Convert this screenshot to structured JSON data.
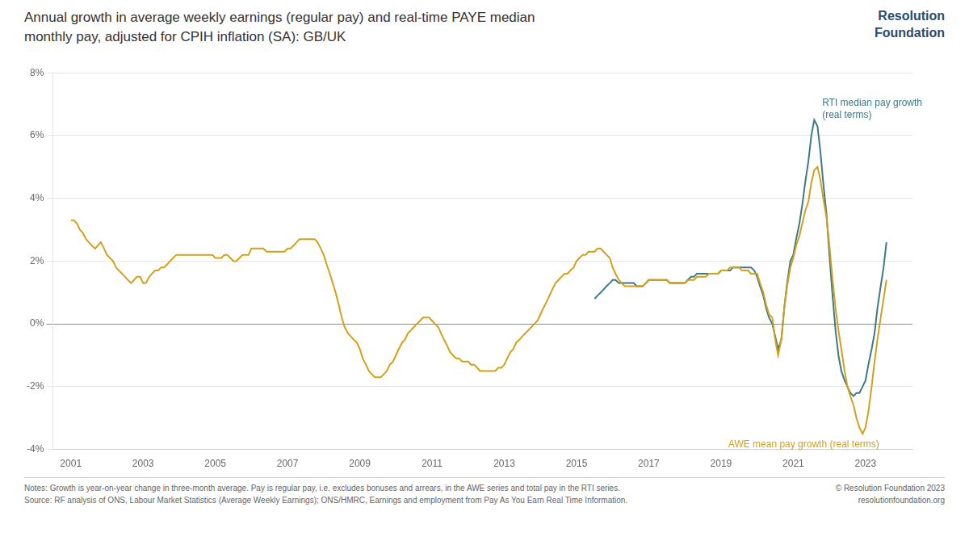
{
  "chart_data": {
    "type": "line",
    "title": "Annual growth in average weekly earnings (regular pay) and real-time PAYE median\nmonthly pay, adjusted for CPIH inflation (SA): GB/UK",
    "logo": "Resolution\nFoundation",
    "notes": [
      "Notes: Growth is year-on-year change in three-month average. Pay is regular pay, i.e. excludes bonuses and arrears, in the AWE series and total pay in the RTI series.",
      "Source: RF analysis of ONS, Labour Market Statistics (Average Weekly Earnings); ONS/HMRC, Earnings and employment from Pay As You Earn Real Time Information."
    ],
    "credit": "© Resolution Foundation 2023\nresolutionfoundation.org",
    "xlim": [
      2000.5,
      2024.3
    ],
    "xticks": [
      2001,
      2003,
      2005,
      2007,
      2009,
      2011,
      2013,
      2015,
      2017,
      2019,
      2021,
      2023
    ],
    "ylim": [
      -0.04,
      0.08
    ],
    "yticks": [
      {
        "value": -0.04,
        "label": "-4%"
      },
      {
        "value": -0.02,
        "label": "-2%"
      },
      {
        "value": 0.0,
        "label": "0%"
      },
      {
        "value": 0.02,
        "label": "2%"
      },
      {
        "value": 0.04,
        "label": "4%"
      },
      {
        "value": 0.06,
        "label": "6%"
      },
      {
        "value": 0.08,
        "label": "8%"
      }
    ],
    "grid": "y",
    "annotations": [
      {
        "text": "RTI median pay growth\n(real terms)",
        "x": 2021.8,
        "y": 0.072,
        "color": "#3d7a8a"
      },
      {
        "text": "AWE mean pay growth (real terms)",
        "x": 2019.2,
        "y": -0.037,
        "color": "#d4a017"
      }
    ],
    "series": [
      {
        "color": "#d4a017",
        "x": [
          2001.0,
          2001.08,
          2001.17,
          2001.25,
          2001.33,
          2001.42,
          2001.5,
          2001.58,
          2001.67,
          2001.75,
          2001.83,
          2001.92,
          2002.0,
          2002.08,
          2002.17,
          2002.25,
          2002.33,
          2002.42,
          2002.5,
          2002.58,
          2002.67,
          2002.75,
          2002.83,
          2002.92,
          2003.0,
          2003.08,
          2003.17,
          2003.25,
          2003.33,
          2003.42,
          2003.5,
          2003.58,
          2003.67,
          2003.75,
          2003.83,
          2003.92,
          2004.0,
          2004.08,
          2004.17,
          2004.25,
          2004.33,
          2004.42,
          2004.5,
          2004.58,
          2004.67,
          2004.75,
          2004.83,
          2004.92,
          2005.0,
          2005.08,
          2005.17,
          2005.25,
          2005.33,
          2005.42,
          2005.5,
          2005.58,
          2005.67,
          2005.75,
          2005.83,
          2005.92,
          2006.0,
          2006.08,
          2006.17,
          2006.25,
          2006.33,
          2006.42,
          2006.5,
          2006.58,
          2006.67,
          2006.75,
          2006.83,
          2006.92,
          2007.0,
          2007.08,
          2007.17,
          2007.25,
          2007.33,
          2007.42,
          2007.5,
          2007.58,
          2007.67,
          2007.75,
          2007.83,
          2007.92,
          2008.0,
          2008.08,
          2008.17,
          2008.25,
          2008.33,
          2008.42,
          2008.5,
          2008.58,
          2008.67,
          2008.75,
          2008.83,
          2008.92,
          2009.0,
          2009.08,
          2009.17,
          2009.25,
          2009.33,
          2009.42,
          2009.5,
          2009.58,
          2009.67,
          2009.75,
          2009.83,
          2009.92,
          2010.0,
          2010.08,
          2010.17,
          2010.25,
          2010.33,
          2010.42,
          2010.5,
          2010.58,
          2010.67,
          2010.75,
          2010.83,
          2010.92,
          2011.0,
          2011.08,
          2011.17,
          2011.25,
          2011.33,
          2011.42,
          2011.5,
          2011.58,
          2011.67,
          2011.75,
          2011.83,
          2011.92,
          2012.0,
          2012.08,
          2012.17,
          2012.25,
          2012.33,
          2012.42,
          2012.5,
          2012.58,
          2012.67,
          2012.75,
          2012.83,
          2012.92,
          2013.0,
          2013.08,
          2013.17,
          2013.25,
          2013.33,
          2013.42,
          2013.5,
          2013.58,
          2013.67,
          2013.75,
          2013.83,
          2013.92,
          2014.0,
          2014.08,
          2014.17,
          2014.25,
          2014.33,
          2014.42,
          2014.5,
          2014.58,
          2014.67,
          2014.75,
          2014.83,
          2014.92,
          2015.0,
          2015.08,
          2015.17,
          2015.25,
          2015.33,
          2015.42,
          2015.5,
          2015.58,
          2015.67,
          2015.75,
          2015.83,
          2015.92,
          2016.0,
          2016.08,
          2016.17,
          2016.25,
          2016.33,
          2016.42,
          2016.5,
          2016.58,
          2016.67,
          2016.75,
          2016.83,
          2016.92,
          2017.0,
          2017.08,
          2017.17,
          2017.25,
          2017.33,
          2017.42,
          2017.5,
          2017.58,
          2017.67,
          2017.75,
          2017.83,
          2017.92,
          2018.0,
          2018.08,
          2018.17,
          2018.25,
          2018.33,
          2018.42,
          2018.5,
          2018.58,
          2018.67,
          2018.75,
          2018.83,
          2018.92,
          2019.0,
          2019.08,
          2019.17,
          2019.25,
          2019.33,
          2019.42,
          2019.5,
          2019.58,
          2019.67,
          2019.75,
          2019.83,
          2019.92,
          2020.0,
          2020.08,
          2020.17,
          2020.25,
          2020.33,
          2020.42,
          2020.5,
          2020.58,
          2020.67,
          2020.75,
          2020.83,
          2020.92,
          2021.0,
          2021.08,
          2021.17,
          2021.25,
          2021.33,
          2021.42,
          2021.5,
          2021.58,
          2021.67,
          2021.75,
          2021.83,
          2021.92,
          2022.0,
          2022.08,
          2022.17,
          2022.25,
          2022.33,
          2022.42,
          2022.5,
          2022.58,
          2022.67,
          2022.75,
          2022.83,
          2022.92,
          2023.0,
          2023.08,
          2023.17,
          2023.25,
          2023.33,
          2023.42,
          2023.5,
          2023.58
        ],
        "values": [
          0.033,
          0.033,
          0.032,
          0.03,
          0.029,
          0.027,
          0.026,
          0.025,
          0.024,
          0.025,
          0.026,
          0.024,
          0.022,
          0.021,
          0.02,
          0.018,
          0.017,
          0.016,
          0.015,
          0.014,
          0.013,
          0.014,
          0.015,
          0.015,
          0.013,
          0.013,
          0.015,
          0.016,
          0.017,
          0.017,
          0.018,
          0.018,
          0.019,
          0.02,
          0.021,
          0.022,
          0.022,
          0.022,
          0.022,
          0.022,
          0.022,
          0.022,
          0.022,
          0.022,
          0.022,
          0.022,
          0.022,
          0.022,
          0.021,
          0.021,
          0.021,
          0.022,
          0.022,
          0.021,
          0.02,
          0.02,
          0.021,
          0.022,
          0.022,
          0.022,
          0.024,
          0.024,
          0.024,
          0.024,
          0.024,
          0.023,
          0.023,
          0.023,
          0.023,
          0.023,
          0.023,
          0.023,
          0.024,
          0.024,
          0.025,
          0.026,
          0.027,
          0.027,
          0.027,
          0.027,
          0.027,
          0.027,
          0.026,
          0.024,
          0.022,
          0.019,
          0.016,
          0.013,
          0.01,
          0.006,
          0.002,
          -0.001,
          -0.003,
          -0.004,
          -0.005,
          -0.006,
          -0.008,
          -0.011,
          -0.013,
          -0.015,
          -0.016,
          -0.017,
          -0.017,
          -0.017,
          -0.016,
          -0.015,
          -0.013,
          -0.012,
          -0.01,
          -0.008,
          -0.006,
          -0.005,
          -0.003,
          -0.002,
          -0.001,
          0.0,
          0.001,
          0.002,
          0.002,
          0.002,
          0.001,
          0.0,
          -0.001,
          -0.003,
          -0.005,
          -0.007,
          -0.009,
          -0.01,
          -0.011,
          -0.011,
          -0.012,
          -0.012,
          -0.012,
          -0.013,
          -0.013,
          -0.014,
          -0.015,
          -0.015,
          -0.015,
          -0.015,
          -0.015,
          -0.015,
          -0.014,
          -0.014,
          -0.013,
          -0.011,
          -0.009,
          -0.008,
          -0.006,
          -0.005,
          -0.004,
          -0.003,
          -0.002,
          -0.001,
          0.0,
          0.001,
          0.003,
          0.005,
          0.007,
          0.009,
          0.011,
          0.013,
          0.014,
          0.015,
          0.016,
          0.016,
          0.017,
          0.018,
          0.02,
          0.021,
          0.022,
          0.022,
          0.023,
          0.023,
          0.023,
          0.024,
          0.024,
          0.023,
          0.022,
          0.021,
          0.018,
          0.016,
          0.014,
          0.013,
          0.012,
          0.012,
          0.012,
          0.012,
          0.012,
          0.012,
          0.012,
          0.013,
          0.014,
          0.014,
          0.014,
          0.014,
          0.014,
          0.014,
          0.014,
          0.013,
          0.013,
          0.013,
          0.013,
          0.013,
          0.013,
          0.014,
          0.014,
          0.014,
          0.015,
          0.015,
          0.015,
          0.015,
          0.016,
          0.016,
          0.016,
          0.016,
          0.017,
          0.017,
          0.017,
          0.018,
          0.018,
          0.018,
          0.018,
          0.017,
          0.017,
          0.017,
          0.016,
          0.016,
          0.016,
          0.013,
          0.01,
          0.006,
          0.003,
          0.002,
          -0.005,
          -0.01,
          -0.005,
          0.005,
          0.012,
          0.018,
          0.021,
          0.025,
          0.028,
          0.032,
          0.036,
          0.039,
          0.045,
          0.049,
          0.05,
          0.046,
          0.04,
          0.034,
          0.025,
          0.015,
          0.005,
          -0.002,
          -0.008,
          -0.015,
          -0.02,
          -0.023,
          -0.026,
          -0.03,
          -0.033,
          -0.035,
          -0.033,
          -0.028,
          -0.02,
          -0.012,
          -0.005,
          0.002,
          0.008,
          0.014
        ]
      },
      {
        "color": "#3d7a8a",
        "x": [
          2015.5,
          2015.58,
          2015.67,
          2015.75,
          2015.83,
          2015.92,
          2016.0,
          2016.08,
          2016.17,
          2016.25,
          2016.33,
          2016.42,
          2016.5,
          2016.58,
          2016.67,
          2016.75,
          2016.83,
          2016.92,
          2017.0,
          2017.08,
          2017.17,
          2017.25,
          2017.33,
          2017.42,
          2017.5,
          2017.58,
          2017.67,
          2017.75,
          2017.83,
          2017.92,
          2018.0,
          2018.08,
          2018.17,
          2018.25,
          2018.33,
          2018.42,
          2018.5,
          2018.58,
          2018.67,
          2018.75,
          2018.83,
          2018.92,
          2019.0,
          2019.08,
          2019.17,
          2019.25,
          2019.33,
          2019.42,
          2019.5,
          2019.58,
          2019.67,
          2019.75,
          2019.83,
          2019.92,
          2020.0,
          2020.08,
          2020.17,
          2020.25,
          2020.33,
          2020.42,
          2020.5,
          2020.58,
          2020.67,
          2020.75,
          2020.83,
          2020.92,
          2021.0,
          2021.08,
          2021.17,
          2021.25,
          2021.33,
          2021.42,
          2021.5,
          2021.58,
          2021.67,
          2021.75,
          2021.83,
          2021.92,
          2022.0,
          2022.08,
          2022.17,
          2022.25,
          2022.33,
          2022.42,
          2022.5,
          2022.58,
          2022.67,
          2022.75,
          2022.83,
          2022.92,
          2023.0,
          2023.08,
          2023.17,
          2023.25,
          2023.33,
          2023.42,
          2023.5,
          2023.58
        ],
        "values": [
          0.008,
          0.009,
          0.01,
          0.011,
          0.012,
          0.013,
          0.014,
          0.014,
          0.013,
          0.013,
          0.013,
          0.013,
          0.013,
          0.013,
          0.012,
          0.012,
          0.012,
          0.013,
          0.014,
          0.014,
          0.014,
          0.014,
          0.014,
          0.014,
          0.014,
          0.013,
          0.013,
          0.013,
          0.013,
          0.013,
          0.013,
          0.014,
          0.015,
          0.015,
          0.016,
          0.016,
          0.016,
          0.016,
          0.016,
          0.016,
          0.016,
          0.016,
          0.017,
          0.017,
          0.017,
          0.017,
          0.018,
          0.018,
          0.018,
          0.018,
          0.018,
          0.018,
          0.018,
          0.017,
          0.015,
          0.012,
          0.009,
          0.005,
          0.002,
          0.0,
          -0.004,
          -0.008,
          -0.005,
          0.005,
          0.013,
          0.02,
          0.022,
          0.027,
          0.032,
          0.038,
          0.045,
          0.052,
          0.06,
          0.065,
          0.063,
          0.055,
          0.045,
          0.035,
          0.022,
          0.01,
          -0.002,
          -0.01,
          -0.015,
          -0.018,
          -0.02,
          -0.022,
          -0.023,
          -0.022,
          -0.022,
          -0.02,
          -0.018,
          -0.013,
          -0.008,
          -0.003,
          0.005,
          0.012,
          0.018,
          0.026
        ]
      }
    ]
  }
}
